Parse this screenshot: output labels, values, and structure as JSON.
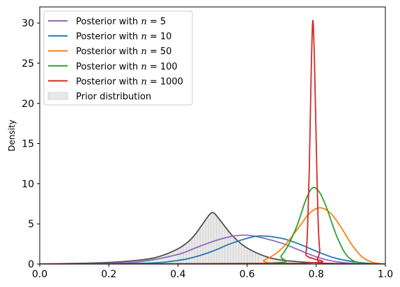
{
  "chart_data": {
    "type": "line",
    "title": "",
    "xlabel": "",
    "ylabel": "Density",
    "xlim": [
      0.0,
      1.0
    ],
    "ylim": [
      0,
      32
    ],
    "x_ticks": [
      "0.0",
      "0.2",
      "0.4",
      "0.6",
      "0.8",
      "1.0"
    ],
    "y_ticks": [
      "0",
      "5",
      "10",
      "15",
      "20",
      "25",
      "30"
    ],
    "legend_position": "top-left",
    "series": [
      {
        "name": "Posterior with n = 5",
        "label_prefix": "Posterior with ",
        "label_var": "n",
        "label_eq": " = ",
        "label_num": "5",
        "color": "#9467bd",
        "x": [
          0.0,
          0.2,
          0.3,
          0.4,
          0.45,
          0.5,
          0.55,
          0.59,
          0.63,
          0.7,
          0.75,
          0.8,
          0.85,
          0.9,
          0.95,
          1.0
        ],
        "y": [
          0.0,
          0.1,
          0.35,
          1.2,
          2.0,
          2.8,
          3.4,
          3.6,
          3.4,
          2.6,
          1.75,
          0.9,
          0.35,
          0.12,
          0.03,
          0.0
        ]
      },
      {
        "name": "Posterior with n = 10",
        "label_prefix": "Posterior with ",
        "label_var": "n",
        "label_eq": " = ",
        "label_num": "10",
        "color": "#1f77b4",
        "x": [
          0.0,
          0.3,
          0.4,
          0.45,
          0.5,
          0.55,
          0.6,
          0.64,
          0.7,
          0.75,
          0.8,
          0.85,
          0.9,
          0.95,
          1.0
        ],
        "y": [
          0.0,
          0.1,
          0.45,
          0.9,
          1.6,
          2.5,
          3.2,
          3.5,
          3.2,
          2.5,
          1.6,
          0.8,
          0.35,
          0.1,
          0.0
        ]
      },
      {
        "name": "Posterior with n = 50",
        "label_prefix": "Posterior with ",
        "label_var": "n",
        "label_eq": " = ",
        "label_num": "50",
        "color": "#ff7f0e",
        "x": [
          0.0,
          0.6,
          0.65,
          0.7,
          0.75,
          0.78,
          0.81,
          0.84,
          0.87,
          0.9,
          0.93,
          0.96,
          1.0
        ],
        "y": [
          0.0,
          0.05,
          0.5,
          1.9,
          4.6,
          6.3,
          7.0,
          6.4,
          4.7,
          2.6,
          1.0,
          0.25,
          0.0
        ]
      },
      {
        "name": "Posterior with n = 100",
        "label_prefix": "Posterior with ",
        "label_var": "n",
        "label_eq": " = ",
        "label_num": "100",
        "color": "#2ca02c",
        "x": [
          0.0,
          0.65,
          0.7,
          0.74,
          0.77,
          0.79,
          0.81,
          0.83,
          0.86,
          0.89,
          0.93,
          1.0
        ],
        "y": [
          0.0,
          0.1,
          1.1,
          4.3,
          8.0,
          9.5,
          8.9,
          7.0,
          3.4,
          1.0,
          0.1,
          0.0
        ]
      },
      {
        "name": "Posterior with n = 1000",
        "label_prefix": "Posterior with ",
        "label_var": "n",
        "label_eq": " = ",
        "label_num": "1000",
        "color": "#d62728",
        "x": [
          0.0,
          0.76,
          0.77,
          0.775,
          0.78,
          0.785,
          0.79,
          0.795,
          0.8,
          0.805,
          0.81,
          0.82,
          1.0
        ],
        "y": [
          0.0,
          0.1,
          1.2,
          4.5,
          12.0,
          23.0,
          30.3,
          25.0,
          15.0,
          6.0,
          1.8,
          0.1,
          0.0
        ]
      },
      {
        "name": "Prior distribution",
        "legend_label": "Prior distribution",
        "kind": "filled-area",
        "line_color": "#4d4d4d",
        "fill_color": "#e8e8e8",
        "x": [
          0.0,
          0.1,
          0.2,
          0.3,
          0.35,
          0.4,
          0.43,
          0.45,
          0.47,
          0.49,
          0.5,
          0.51,
          0.53,
          0.55,
          0.57,
          0.6,
          0.65,
          0.7,
          0.8,
          0.9,
          1.0
        ],
        "y": [
          0.02,
          0.08,
          0.2,
          0.55,
          1.0,
          1.9,
          2.8,
          3.7,
          4.9,
          6.1,
          6.4,
          6.1,
          5.0,
          3.9,
          3.0,
          2.0,
          1.0,
          0.5,
          0.15,
          0.04,
          0.0
        ]
      }
    ]
  }
}
